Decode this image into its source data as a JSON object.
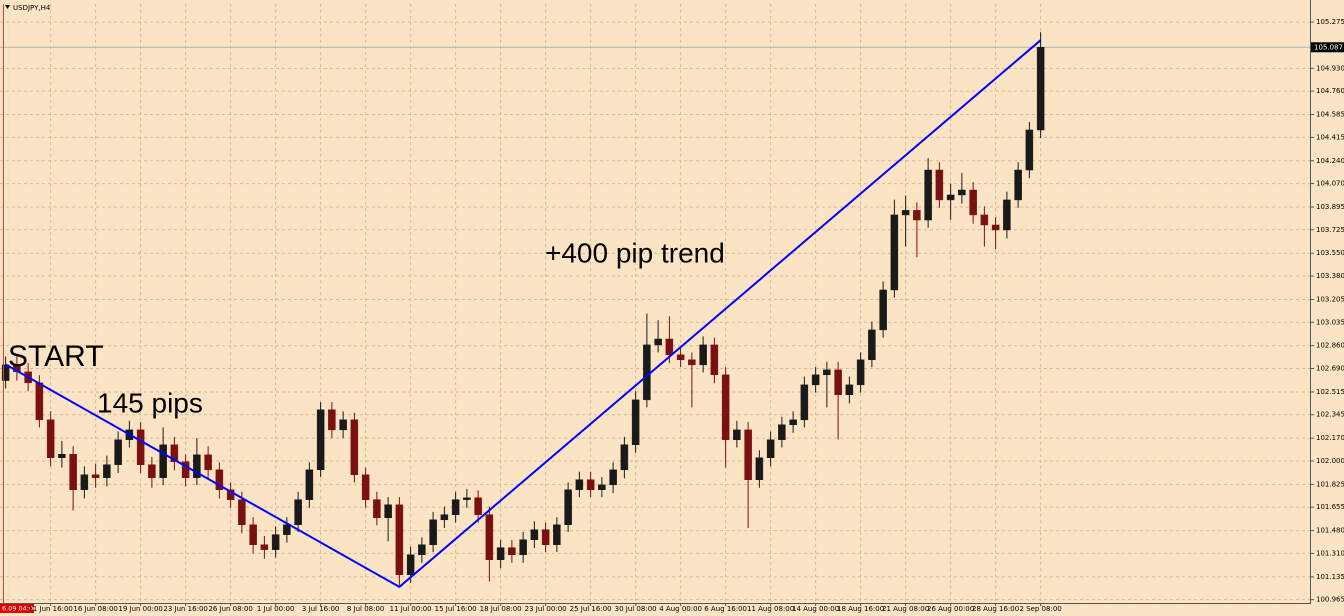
{
  "chart_data": {
    "type": "candlestick",
    "title": "USDJPY,H4",
    "annotations": [
      "START",
      "145 pips",
      "+400 pip trend"
    ],
    "cursor_time_label": "6.09 04:00",
    "current_price": 105.087,
    "up_color": "#1a1a1a",
    "down_color": "#7a1010",
    "trendline_color": "#0000ff",
    "grid": true,
    "ylim": [
      100.94,
      105.41
    ],
    "yticks": [
      105.275,
      {
        "value": 104.93,
        "label": "104.930"
      },
      {
        "value": 104.76,
        "label": "104.760"
      },
      104.585,
      104.415,
      {
        "value": 104.24,
        "label": "104.240"
      },
      {
        "value": 104.07,
        "label": "104.070"
      },
      103.895,
      103.725,
      {
        "value": 103.55,
        "label": "103.550"
      },
      {
        "value": 103.38,
        "label": "103.380"
      },
      103.205,
      103.035,
      {
        "value": 102.86,
        "label": "102.860"
      },
      {
        "value": 102.69,
        "label": "102.690"
      },
      102.515,
      102.345,
      {
        "value": 102.17,
        "label": "102.170"
      },
      {
        "value": 102.0,
        "label": "102.000"
      },
      101.825,
      101.655,
      {
        "value": 101.48,
        "label": "101.480"
      },
      {
        "value": 101.31,
        "label": "101.310"
      },
      101.135,
      100.965
    ],
    "categories": [
      null,
      null,
      null,
      null,
      "11 Jun 16:00",
      null,
      null,
      null,
      "16 Jun 08:00",
      null,
      null,
      null,
      "19 Jun 00:00",
      null,
      null,
      null,
      "23 Jun 16:00",
      null,
      null,
      null,
      "26 Jun 08:00",
      null,
      null,
      null,
      "1 Jul 00:00",
      null,
      null,
      null,
      "3 Jul 16:00",
      null,
      null,
      null,
      "8 Jul 08:00",
      null,
      null,
      null,
      "11 Jul 00:00",
      null,
      null,
      null,
      "15 Jul 16:00",
      null,
      null,
      null,
      "18 Jul 08:00",
      null,
      null,
      null,
      "23 Jul 00:00",
      null,
      null,
      null,
      "25 Jul 16:00",
      null,
      null,
      null,
      "30 Jul 08:00",
      null,
      null,
      null,
      "4 Aug 00:00",
      null,
      null,
      null,
      "6 Aug 16:00",
      null,
      null,
      null,
      "11 Aug 08:00",
      null,
      null,
      null,
      "14 Aug 00:00",
      null,
      null,
      null,
      "18 Aug 16:00",
      null,
      null,
      null,
      "21 Aug 08:00",
      null,
      null,
      null,
      "26 Aug 00:00",
      null,
      null,
      null,
      "28 Aug 16:00",
      null,
      null,
      null,
      "2 Sep 08:00"
    ],
    "open": [
      102.6,
      102.717,
      102.665,
      102.583,
      102.307,
      102.024,
      102.05,
      101.785,
      101.897,
      101.875,
      101.972,
      102.158,
      102.232,
      101.972,
      101.875,
      102.121,
      101.994,
      101.875,
      102.046,
      101.934,
      101.785,
      101.711,
      101.524,
      101.375,
      101.338,
      101.45,
      101.524,
      101.711,
      101.934,
      102.382,
      102.232,
      102.307,
      101.897,
      101.711,
      101.576,
      101.673,
      101.151,
      101.3,
      101.375,
      101.561,
      101.599,
      101.711,
      101.725,
      101.599,
      101.263,
      101.353,
      101.3,
      101.412,
      101.487,
      101.375,
      101.524,
      101.785,
      101.86,
      101.785,
      101.822,
      101.934,
      102.121,
      102.456,
      102.866,
      102.91,
      102.792,
      102.755,
      102.717,
      102.866,
      102.643,
      102.158,
      102.232,
      101.86,
      102.024,
      102.158,
      102.27,
      102.307,
      102.568,
      102.643,
      102.68,
      102.494,
      102.568,
      102.755,
      102.978,
      103.276,
      103.836,
      103.87,
      103.798,
      104.171,
      103.948,
      103.985,
      104.022,
      103.836,
      103.761,
      103.724,
      103.948,
      104.171,
      104.47
    ],
    "high": [
      102.78,
      102.78,
      102.73,
      102.64,
      102.37,
      102.15,
      102.11,
      101.96,
      101.98,
      102.04,
      102.22,
      102.3,
      102.29,
      102.03,
      102.25,
      102.18,
      102.05,
      102.17,
      102.11,
      101.99,
      101.84,
      101.77,
      101.58,
      101.44,
      101.51,
      101.58,
      101.77,
      101.99,
      102.44,
      102.44,
      102.37,
      102.36,
      101.95,
      101.77,
      101.73,
      101.73,
      101.36,
      101.43,
      101.62,
      101.66,
      101.77,
      101.79,
      101.78,
      101.66,
      101.41,
      101.41,
      101.47,
      101.55,
      101.54,
      101.58,
      101.84,
      101.92,
      101.92,
      101.88,
      101.99,
      102.18,
      102.52,
      103.1,
      103.05,
      103.08,
      102.85,
      102.81,
      102.93,
      102.92,
      102.7,
      102.3,
      102.29,
      102.08,
      102.22,
      102.33,
      102.37,
      102.63,
      102.7,
      102.74,
      102.74,
      102.63,
      102.81,
      103.04,
      103.34,
      103.95,
      103.98,
      103.93,
      104.26,
      104.23,
      104.07,
      104.15,
      104.08,
      103.9,
      103.82,
      104.01,
      104.23,
      104.53,
      105.2
    ],
    "low": [
      102.54,
      102.6,
      102.52,
      102.25,
      101.96,
      101.95,
      101.63,
      101.72,
      101.8,
      101.81,
      101.91,
      102.1,
      101.91,
      101.8,
      101.82,
      101.93,
      101.81,
      101.82,
      101.87,
      101.72,
      101.65,
      101.46,
      101.31,
      101.27,
      101.28,
      101.39,
      101.47,
      101.65,
      101.88,
      102.17,
      102.17,
      101.84,
      101.65,
      101.52,
      101.4,
      101.07,
      101.09,
      101.24,
      101.32,
      101.5,
      101.54,
      101.65,
      101.54,
      101.1,
      101.2,
      101.24,
      101.24,
      101.35,
      101.32,
      101.32,
      101.47,
      101.73,
      101.73,
      101.73,
      101.76,
      101.87,
      102.06,
      102.4,
      102.81,
      102.73,
      102.7,
      102.4,
      102.66,
      102.58,
      101.95,
      102.1,
      101.5,
      101.8,
      101.96,
      102.1,
      102.21,
      102.25,
      102.51,
      102.4,
      102.16,
      102.43,
      102.51,
      102.7,
      102.92,
      103.22,
      103.6,
      103.52,
      103.74,
      103.89,
      103.8,
      103.92,
      103.77,
      103.6,
      103.58,
      103.66,
      103.89,
      104.11,
      104.41
    ],
    "close": [
      102.717,
      102.665,
      102.583,
      102.307,
      102.024,
      102.05,
      101.785,
      101.897,
      101.875,
      101.972,
      102.158,
      102.232,
      101.972,
      101.875,
      102.121,
      101.994,
      101.875,
      102.046,
      101.934,
      101.785,
      101.711,
      101.524,
      101.375,
      101.338,
      101.45,
      101.524,
      101.711,
      101.934,
      102.382,
      102.232,
      102.307,
      101.897,
      101.711,
      101.576,
      101.673,
      101.151,
      101.3,
      101.375,
      101.561,
      101.599,
      101.711,
      101.725,
      101.599,
      101.263,
      101.353,
      101.3,
      101.412,
      101.487,
      101.375,
      101.524,
      101.785,
      101.86,
      101.785,
      101.822,
      101.934,
      102.121,
      102.456,
      102.866,
      102.91,
      102.792,
      102.755,
      102.717,
      102.866,
      102.643,
      102.158,
      102.232,
      101.86,
      102.024,
      102.158,
      102.27,
      102.307,
      102.568,
      102.643,
      102.68,
      102.494,
      102.568,
      102.755,
      102.978,
      103.276,
      103.836,
      103.87,
      103.798,
      104.171,
      103.948,
      103.985,
      104.022,
      103.836,
      103.761,
      103.724,
      103.948,
      104.171,
      104.47,
      105.087
    ],
    "trendline": {
      "x": [
        0,
        35,
        92
      ],
      "y": [
        102.72,
        101.06,
        105.14
      ]
    }
  }
}
